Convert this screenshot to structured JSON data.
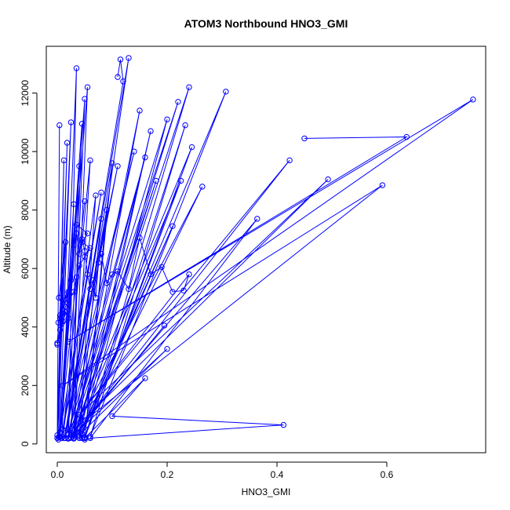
{
  "chart_data": {
    "type": "line",
    "title": "ATOM3 Northbound HNO3_GMI",
    "xlabel": "HNO3_GMI",
    "ylabel": "Altitude (m)",
    "xlim": [
      -0.02,
      0.78
    ],
    "ylim": [
      -300,
      13600
    ],
    "x_ticks": [
      0.0,
      0.2,
      0.4,
      0.6
    ],
    "x_tick_labels": [
      "0.0",
      "0.2",
      "0.4",
      "0.6"
    ],
    "y_ticks": [
      0,
      2000,
      4000,
      6000,
      8000,
      10000,
      12000
    ],
    "y_tick_labels": [
      "0",
      "2000",
      "4000",
      "6000",
      "8000",
      "10000",
      "12000"
    ],
    "grid": false,
    "legend": "none",
    "marker": "open-circle",
    "series_color": "#0000ff",
    "series": [
      {
        "x": [
          0.004,
          0.0,
          0.012,
          0.002,
          0.018,
          0.0,
          0.025,
          0.004,
          0.03,
          0.008,
          0.035,
          0.02,
          0.04,
          0.003,
          0.045,
          0.025,
          0.05,
          0.005,
          0.055,
          0.03,
          0.06,
          0.01,
          0.07,
          0.04,
          0.08,
          0.015,
          0.09,
          0.05,
          0.1,
          0.02
        ],
        "y": [
          10900,
          200,
          9700,
          150,
          10300,
          300,
          11000,
          250,
          8200,
          200,
          12850,
          180,
          9500,
          220,
          10950,
          210,
          11800,
          230,
          12200,
          200,
          9700,
          250,
          8500,
          300,
          7700,
          200,
          8000,
          150,
          9600,
          180
        ]
      },
      {
        "x": [
          0.11,
          0.115,
          0.12,
          0.013,
          0.13,
          0.03,
          0.15,
          0.04,
          0.17,
          0.045,
          0.2,
          0.02,
          0.22,
          0.03,
          0.24,
          0.05,
          0.245,
          0.025,
          0.264,
          0.04,
          0.307,
          0.06,
          0.233,
          0.05,
          0.225,
          0.03
        ],
        "y": [
          12550,
          13150,
          12400,
          200,
          13200,
          300,
          11400,
          250,
          10700,
          200,
          11100,
          200,
          11700,
          180,
          12200,
          200,
          10150,
          220,
          8800,
          200,
          12050,
          250,
          10900,
          230,
          9000,
          200
        ]
      },
      {
        "x": [
          0.45,
          0.636,
          0.02,
          0.757,
          0.01,
          0.592,
          0.03,
          0.493,
          0.04,
          0.423,
          0.05,
          0.364,
          0.06,
          0.412,
          0.1,
          0.16,
          0.05
        ],
        "y": [
          10450,
          10500,
          3500,
          11780,
          2000,
          8850,
          500,
          9050,
          1000,
          9700,
          800,
          7700,
          200,
          650,
          950,
          2250,
          200
        ]
      },
      {
        "x": [
          0.0,
          0.015,
          0.005,
          0.02,
          0.01,
          0.025,
          0.03,
          0.035,
          0.04,
          0.045,
          0.05,
          0.055,
          0.06,
          0.065,
          0.07,
          0.075,
          0.08,
          0.09,
          0.1,
          0.11,
          0.13,
          0.15,
          0.17,
          0.19,
          0.21,
          0.23,
          0.24,
          0.02
        ],
        "y": [
          3400,
          4500,
          4300,
          5200,
          4800,
          5600,
          6800,
          7200,
          6500,
          7000,
          6600,
          5800,
          5300,
          5600,
          5000,
          6200,
          6500,
          5500,
          5800,
          5900,
          5300,
          7050,
          5800,
          6050,
          5200,
          5250,
          5800,
          500
        ]
      },
      {
        "x": [
          0.005,
          0.012,
          0.002,
          0.01,
          0.0,
          0.015,
          0.003,
          0.02,
          0.005,
          0.01,
          0.015,
          0.03,
          0.035,
          0.04,
          0.05,
          0.06,
          0.045,
          0.055,
          0.035
        ],
        "y": [
          4400,
          4900,
          4150,
          4450,
          3450,
          6900,
          5000,
          4300,
          3900,
          4200,
          4700,
          5200,
          5700,
          6100,
          6400,
          6700,
          6900,
          7200,
          7500
        ]
      },
      {
        "x": [
          0.05,
          0.005,
          0.08,
          0.01,
          0.11,
          0.015,
          0.14,
          0.02,
          0.16,
          0.025,
          0.18,
          0.03,
          0.195,
          0.035,
          0.2,
          0.04,
          0.21,
          0.045
        ],
        "y": [
          8300,
          400,
          8600,
          500,
          9500,
          450,
          10000,
          350,
          9800,
          300,
          9000,
          250,
          4050,
          400,
          3250,
          300,
          7450,
          350
        ]
      }
    ]
  }
}
